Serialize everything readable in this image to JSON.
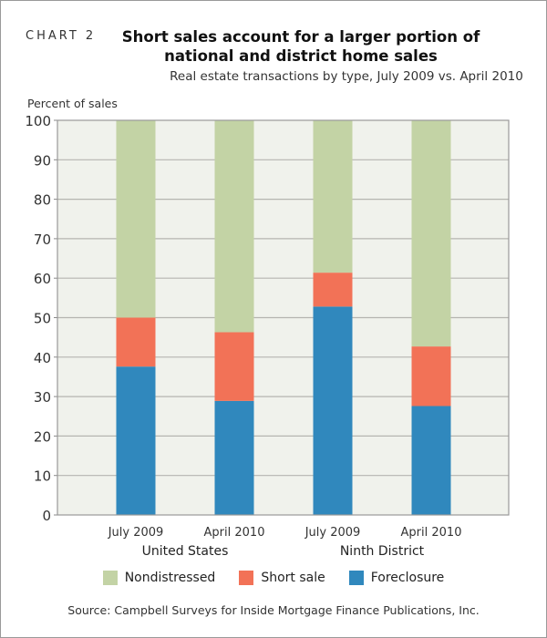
{
  "chart_label": "CHART 2",
  "chart_data": {
    "type": "bar",
    "stacked": true,
    "title": "Short sales account for a larger portion of national and district home sales",
    "subtitle": "Real estate transactions by type, July 2009 vs. April 2010",
    "ylabel": "Percent of sales",
    "ylim": [
      0,
      100
    ],
    "yticks": [
      0,
      10,
      20,
      30,
      40,
      50,
      60,
      70,
      80,
      90,
      100
    ],
    "grid": true,
    "categories": [
      "July 2009",
      "April 2010",
      "July 2009",
      "April 2010"
    ],
    "groups": [
      {
        "label": "United States",
        "span": [
          0,
          1
        ]
      },
      {
        "label": "Ninth District",
        "span": [
          2,
          3
        ]
      }
    ],
    "series": [
      {
        "name": "Foreclosure",
        "color": "#3088bd",
        "values": [
          37.6,
          28.9,
          52.8,
          27.6
        ]
      },
      {
        "name": "Short sale",
        "color": "#f27257",
        "values": [
          12.4,
          17.4,
          8.6,
          15.1
        ]
      },
      {
        "name": "Nondistressed",
        "color": "#c3d3a5",
        "values": [
          50.0,
          53.7,
          38.6,
          57.3
        ]
      }
    ],
    "legend": [
      "Nondistressed",
      "Short sale",
      "Foreclosure"
    ],
    "legend_placement": "bottom",
    "plot_background": "#f0f2ec"
  },
  "source": "Source: Campbell Surveys for Inside Mortgage Finance Publications, Inc."
}
